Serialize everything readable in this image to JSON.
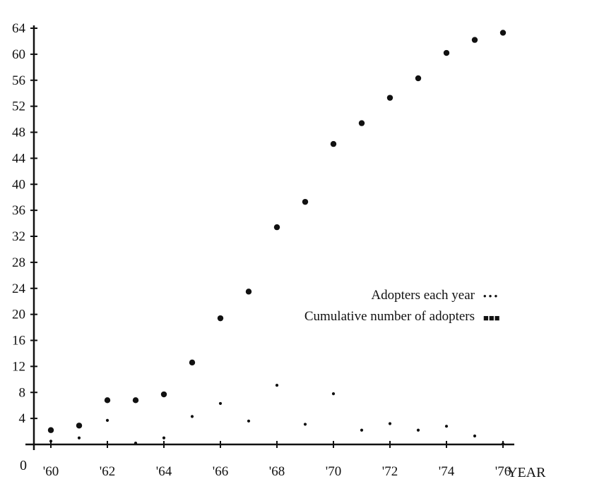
{
  "chart_data": {
    "type": "scatter",
    "title": "",
    "xlabel": "YEAR",
    "ylabel": "",
    "xlim": [
      1959.4,
      1977.2
    ],
    "ylim": [
      0,
      64
    ],
    "origin_label": "0",
    "x_ticks": [
      1960,
      1962,
      1964,
      1966,
      1968,
      1970,
      1972,
      1974,
      1976
    ],
    "x_tick_labels": [
      "'60",
      "'62",
      "'64",
      "'66",
      "'68",
      "'70",
      "'72",
      "'74",
      "'76"
    ],
    "y_ticks": [
      4,
      8,
      12,
      16,
      20,
      24,
      28,
      32,
      36,
      40,
      44,
      48,
      52,
      56,
      60,
      64
    ],
    "y_tick_labels": [
      "4",
      "8",
      "12",
      "16",
      "20",
      "24",
      "28",
      "32",
      "36",
      "40",
      "44",
      "48",
      "52",
      "56",
      "60",
      "64"
    ],
    "grid": false,
    "legend_placement": "middle-right",
    "series": [
      {
        "name": "Adopters each year",
        "legend_marker": "• • •",
        "marker": "small-dot",
        "color": "#111111",
        "x": [
          1960,
          1961,
          1962,
          1963,
          1964,
          1965,
          1966,
          1967,
          1968,
          1969,
          1970,
          1971,
          1972,
          1973,
          1974,
          1975,
          1976
        ],
        "y": [
          0.5,
          1,
          3.7,
          0.2,
          1,
          4.3,
          6.3,
          3.6,
          9.1,
          3.1,
          7.8,
          2.2,
          3.2,
          2.2,
          2.8,
          1.3,
          0.1
        ]
      },
      {
        "name": "Cumulative number of adopters",
        "legend_marker": "■■■",
        "marker": "large-dot",
        "color": "#111111",
        "x": [
          1960,
          1961,
          1962,
          1963,
          1964,
          1965,
          1966,
          1967,
          1968,
          1969,
          1970,
          1971,
          1972,
          1973,
          1974,
          1975,
          1976
        ],
        "y": [
          2.2,
          2.9,
          6.8,
          6.8,
          7.7,
          12.6,
          19.4,
          23.5,
          33.4,
          37.3,
          46.2,
          49.4,
          53.3,
          56.3,
          60.2,
          62.2,
          63.3
        ]
      }
    ]
  }
}
